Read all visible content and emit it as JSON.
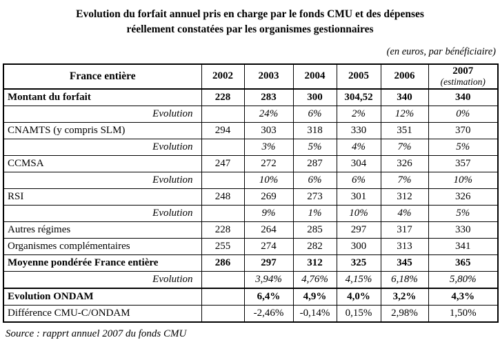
{
  "title": {
    "line1": "Evolution du forfait annuel pris en charge par le fonds CMU et des dépenses",
    "line2": "réellement constatées par les organismes gestionnaires"
  },
  "unit_note": "(en euros, par bénéficiaire)",
  "table": {
    "corner_label": "France entière",
    "year_headers": [
      "2002",
      "2003",
      "2004",
      "2005",
      "2006"
    ],
    "last_year": "2007",
    "last_year_note": "(estimation)",
    "rows": [
      {
        "label": "Montant du forfait",
        "style": "bold",
        "values": [
          "228",
          "283",
          "300",
          "304,52",
          "340",
          "340"
        ]
      },
      {
        "label": "Evolution",
        "style": "evolution",
        "values": [
          "",
          "24%",
          "6%",
          "2%",
          "12%",
          "0%"
        ]
      },
      {
        "label": "CNAMTS (y compris SLM)",
        "style": "normal",
        "values": [
          "294",
          "303",
          "318",
          "330",
          "351",
          "370"
        ]
      },
      {
        "label": "Evolution",
        "style": "evolution",
        "values": [
          "",
          "3%",
          "5%",
          "4%",
          "7%",
          "5%"
        ]
      },
      {
        "label": "CCMSA",
        "style": "normal",
        "values": [
          "247",
          "272",
          "287",
          "304",
          "326",
          "357"
        ]
      },
      {
        "label": "Evolution",
        "style": "evolution",
        "values": [
          "",
          "10%",
          "6%",
          "6%",
          "7%",
          "10%"
        ]
      },
      {
        "label": "RSI",
        "style": "normal",
        "values": [
          "248",
          "269",
          "273",
          "301",
          "312",
          "326"
        ]
      },
      {
        "label": "Evolution",
        "style": "evolution",
        "values": [
          "",
          "9%",
          "1%",
          "10%",
          "4%",
          "5%"
        ]
      },
      {
        "label": "Autres régimes",
        "style": "normal",
        "values": [
          "228",
          "264",
          "285",
          "297",
          "317",
          "330"
        ]
      },
      {
        "label": "Organismes complémentaires",
        "style": "normal",
        "values": [
          "255",
          "274",
          "282",
          "300",
          "313",
          "341"
        ]
      },
      {
        "label": "Moyenne pondérée France entière",
        "style": "bold",
        "values": [
          "286",
          "297",
          "312",
          "325",
          "345",
          "365"
        ]
      },
      {
        "label": "Evolution",
        "style": "evolution",
        "values": [
          "",
          "3,94%",
          "4,76%",
          "4,15%",
          "6,18%",
          "5,80%"
        ]
      },
      {
        "label": "Evolution ONDAM",
        "style": "bold",
        "thick_top": true,
        "values": [
          "",
          "6,4%",
          "4,9%",
          "4,0%",
          "3,2%",
          "4,3%"
        ]
      },
      {
        "label": "Différence CMU-C/ONDAM",
        "style": "normal",
        "values": [
          "",
          "-2,46%",
          "-0,14%",
          "0,15%",
          "2,98%",
          "1,50%"
        ]
      }
    ]
  },
  "source": "Source : rapprt annuel 2007 du fonds CMU"
}
